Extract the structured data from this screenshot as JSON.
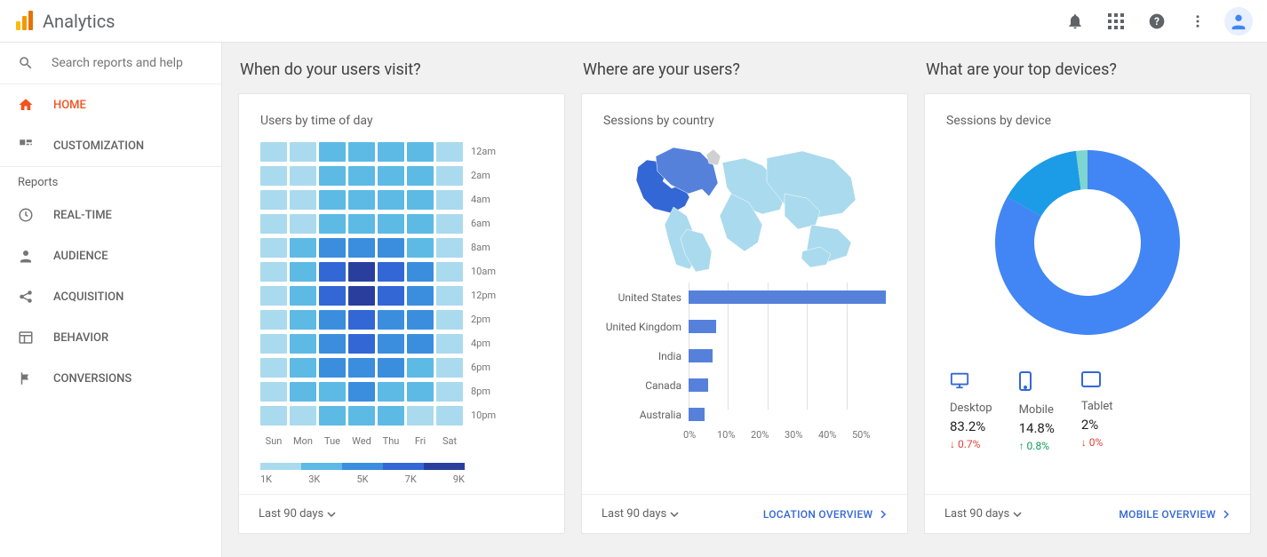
{
  "app": {
    "title": "Analytics",
    "search_placeholder": "Search reports and help"
  },
  "sidebar": {
    "items": [
      {
        "label": "HOME",
        "active": true
      },
      {
        "label": "CUSTOMIZATION",
        "active": false
      }
    ],
    "section_label": "Reports",
    "reports": [
      {
        "label": "REAL-TIME"
      },
      {
        "label": "AUDIENCE"
      },
      {
        "label": "ACQUISITION"
      },
      {
        "label": "BEHAVIOR"
      },
      {
        "label": "CONVERSIONS"
      }
    ]
  },
  "heatmap_card": {
    "question": "When do your users visit?",
    "title": "Users by time of day",
    "footer": "Last 90 days",
    "days": [
      "Sun",
      "Mon",
      "Tue",
      "Wed",
      "Thu",
      "Fri",
      "Sat"
    ],
    "hours": [
      "12am",
      "2am",
      "4am",
      "6am",
      "8am",
      "10am",
      "12pm",
      "2pm",
      "4pm",
      "6pm",
      "8pm",
      "10pm"
    ],
    "colors": [
      "#aadaed",
      "#5cbae5",
      "#3b8ede",
      "#3367d6",
      "#2a3f9d"
    ],
    "legend_ticks": [
      "1K",
      "3K",
      "5K",
      "7K",
      "9K"
    ],
    "data": [
      [
        0,
        0,
        1,
        1,
        1,
        1,
        0
      ],
      [
        0,
        0,
        1,
        1,
        1,
        1,
        0
      ],
      [
        0,
        0,
        1,
        1,
        1,
        1,
        0
      ],
      [
        0,
        0,
        1,
        1,
        1,
        1,
        0
      ],
      [
        0,
        1,
        2,
        2,
        2,
        1,
        0
      ],
      [
        0,
        1,
        3,
        4,
        3,
        2,
        0
      ],
      [
        0,
        1,
        3,
        4,
        3,
        2,
        0
      ],
      [
        0,
        1,
        2,
        3,
        2,
        2,
        0
      ],
      [
        0,
        1,
        2,
        3,
        2,
        2,
        0
      ],
      [
        0,
        1,
        2,
        2,
        2,
        1,
        0
      ],
      [
        0,
        1,
        1,
        2,
        1,
        1,
        0
      ],
      [
        0,
        0,
        1,
        1,
        1,
        0,
        0
      ]
    ]
  },
  "map_card": {
    "question": "Where are your users?",
    "title": "Sessions by country",
    "footer": "Last 90 days",
    "link": "LOCATION OVERVIEW",
    "countries": [
      {
        "name": "United States",
        "value": 50
      },
      {
        "name": "United Kingdom",
        "value": 7
      },
      {
        "name": "India",
        "value": 6
      },
      {
        "name": "Canada",
        "value": 5
      },
      {
        "name": "Australia",
        "value": 4
      }
    ],
    "axis": [
      "0%",
      "10%",
      "20%",
      "30%",
      "40%",
      "50%"
    ],
    "bar_color": "#5681db",
    "map_light": "#aadaed",
    "map_dark": "#3367d6"
  },
  "device_card": {
    "question": "What are your top devices?",
    "title": "Sessions by device",
    "footer": "Last 90 days",
    "link": "MOBILE OVERVIEW",
    "donut": {
      "slices": [
        {
          "label": "Desktop",
          "value": 83.2,
          "color": "#4285f4"
        },
        {
          "label": "Mobile",
          "value": 14.8,
          "color": "#1c9be6"
        },
        {
          "label": "Tablet",
          "value": 2.0,
          "color": "#7dd6d0"
        }
      ],
      "inner_radius": 60,
      "outer_radius": 104
    },
    "devices": [
      {
        "name": "Desktop",
        "pct": "83.2%",
        "delta": "0.7%",
        "dir": "down"
      },
      {
        "name": "Mobile",
        "pct": "14.8%",
        "delta": "0.8%",
        "dir": "up"
      },
      {
        "name": "Tablet",
        "pct": "2%",
        "delta": "0%",
        "dir": "down"
      }
    ]
  }
}
